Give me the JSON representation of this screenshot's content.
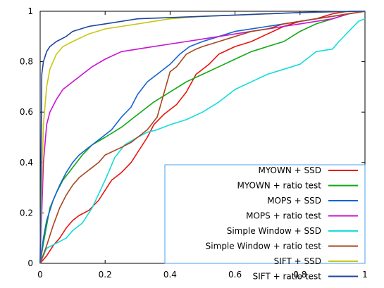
{
  "chart_data": {
    "type": "line",
    "title": "",
    "xlabel": "",
    "ylabel": "",
    "xlim": [
      0,
      1
    ],
    "ylim": [
      0,
      1
    ],
    "xticks": [
      "0",
      "0.2",
      "0.4",
      "0.6",
      "0.8",
      "1"
    ],
    "yticks": [
      "0",
      "0.2",
      "0.4",
      "0.6",
      "0.8",
      "1"
    ],
    "grid": false,
    "legend_position": "bottom-right",
    "series": [
      {
        "name": "MYOWN + SSD",
        "color": "#e8140e",
        "x": [
          0,
          0.02,
          0.04,
          0.06,
          0.08,
          0.1,
          0.12,
          0.15,
          0.18,
          0.2,
          0.22,
          0.25,
          0.28,
          0.3,
          0.33,
          0.35,
          0.38,
          0.4,
          0.42,
          0.45,
          0.48,
          0.52,
          0.55,
          0.6,
          0.65,
          0.7,
          0.75,
          0.8,
          0.85,
          0.9,
          0.95,
          1
        ],
        "y": [
          0,
          0.03,
          0.07,
          0.1,
          0.14,
          0.17,
          0.19,
          0.21,
          0.25,
          0.29,
          0.33,
          0.36,
          0.4,
          0.44,
          0.5,
          0.55,
          0.59,
          0.61,
          0.63,
          0.68,
          0.75,
          0.79,
          0.83,
          0.86,
          0.88,
          0.91,
          0.94,
          0.96,
          0.97,
          0.99,
          1,
          1
        ]
      },
      {
        "name": "MYOWN + ratio test",
        "color": "#12a812",
        "x": [
          0,
          0.01,
          0.02,
          0.03,
          0.05,
          0.07,
          0.1,
          0.13,
          0.16,
          0.2,
          0.25,
          0.3,
          0.35,
          0.4,
          0.45,
          0.5,
          0.55,
          0.6,
          0.65,
          0.7,
          0.75,
          0.8,
          0.85,
          0.9,
          0.95,
          1
        ],
        "y": [
          0,
          0.08,
          0.15,
          0.22,
          0.28,
          0.33,
          0.38,
          0.43,
          0.47,
          0.5,
          0.54,
          0.59,
          0.64,
          0.68,
          0.72,
          0.75,
          0.78,
          0.81,
          0.84,
          0.86,
          0.88,
          0.92,
          0.95,
          0.97,
          0.99,
          1
        ]
      },
      {
        "name": "MOPS + SSD",
        "color": "#1464d2",
        "x": [
          0,
          0.01,
          0.02,
          0.04,
          0.06,
          0.08,
          0.1,
          0.12,
          0.15,
          0.18,
          0.22,
          0.25,
          0.28,
          0.3,
          0.33,
          0.36,
          0.4,
          0.43,
          0.46,
          0.5,
          0.55,
          0.6,
          0.65,
          0.7,
          0.75,
          0.8,
          0.85,
          0.9,
          0.95,
          1
        ],
        "y": [
          0,
          0.1,
          0.17,
          0.25,
          0.31,
          0.36,
          0.4,
          0.43,
          0.46,
          0.49,
          0.53,
          0.58,
          0.62,
          0.67,
          0.72,
          0.75,
          0.79,
          0.83,
          0.86,
          0.88,
          0.9,
          0.92,
          0.93,
          0.94,
          0.95,
          0.96,
          0.97,
          0.98,
          0.99,
          1
        ]
      },
      {
        "name": "MOPS + ratio test",
        "color": "#c814d2",
        "x": [
          0,
          0.005,
          0.01,
          0.02,
          0.03,
          0.05,
          0.07,
          0.1,
          0.13,
          0.16,
          0.2,
          0.25,
          0.3,
          0.35,
          0.4,
          0.45,
          0.5,
          0.55,
          0.6,
          0.65,
          0.7,
          0.75,
          0.8,
          0.85,
          0.9,
          0.95,
          1
        ],
        "y": [
          0,
          0.2,
          0.4,
          0.55,
          0.6,
          0.65,
          0.69,
          0.72,
          0.75,
          0.78,
          0.81,
          0.84,
          0.85,
          0.86,
          0.87,
          0.88,
          0.89,
          0.9,
          0.91,
          0.92,
          0.93,
          0.94,
          0.95,
          0.96,
          0.97,
          0.99,
          1
        ]
      },
      {
        "name": "Simple Window + SSD",
        "color": "#14dcdc",
        "x": [
          0,
          0.02,
          0.05,
          0.08,
          0.1,
          0.13,
          0.16,
          0.2,
          0.23,
          0.26,
          0.3,
          0.33,
          0.36,
          0.4,
          0.45,
          0.5,
          0.55,
          0.6,
          0.65,
          0.7,
          0.75,
          0.8,
          0.85,
          0.9,
          0.92,
          0.95,
          0.98,
          1
        ],
        "y": [
          0,
          0.06,
          0.08,
          0.1,
          0.13,
          0.16,
          0.22,
          0.33,
          0.42,
          0.47,
          0.5,
          0.52,
          0.53,
          0.55,
          0.57,
          0.6,
          0.64,
          0.69,
          0.72,
          0.75,
          0.77,
          0.79,
          0.84,
          0.85,
          0.88,
          0.92,
          0.96,
          0.97
        ]
      },
      {
        "name": "Simple Window + ratio test",
        "color": "#a8461e",
        "x": [
          0,
          0.02,
          0.04,
          0.06,
          0.08,
          0.1,
          0.12,
          0.15,
          0.18,
          0.2,
          0.25,
          0.28,
          0.3,
          0.33,
          0.36,
          0.38,
          0.4,
          0.42,
          0.45,
          0.48,
          0.5,
          0.55,
          0.6,
          0.65,
          0.7,
          0.75,
          0.8,
          0.85,
          0.9,
          0.95,
          1
        ],
        "y": [
          0,
          0.07,
          0.15,
          0.22,
          0.27,
          0.31,
          0.34,
          0.37,
          0.4,
          0.43,
          0.46,
          0.48,
          0.5,
          0.53,
          0.58,
          0.67,
          0.76,
          0.78,
          0.83,
          0.85,
          0.86,
          0.88,
          0.9,
          0.92,
          0.93,
          0.95,
          0.96,
          0.97,
          0.98,
          0.99,
          1
        ]
      },
      {
        "name": "SIFT + SSD",
        "color": "#c8c814",
        "x": [
          0,
          0.005,
          0.01,
          0.02,
          0.03,
          0.05,
          0.07,
          0.1,
          0.15,
          0.2,
          0.25,
          0.3,
          0.35,
          0.4,
          0.5,
          0.6,
          0.7,
          0.8,
          0.9,
          1
        ],
        "y": [
          0,
          0.3,
          0.55,
          0.7,
          0.77,
          0.83,
          0.86,
          0.88,
          0.91,
          0.93,
          0.94,
          0.95,
          0.96,
          0.97,
          0.98,
          0.985,
          0.99,
          0.995,
          0.998,
          1
        ]
      },
      {
        "name": "SIFT + ratio test",
        "color": "#1e46a0",
        "x": [
          0,
          0.005,
          0.01,
          0.02,
          0.03,
          0.05,
          0.08,
          0.1,
          0.15,
          0.2,
          0.25,
          0.3,
          0.4,
          0.5,
          0.6,
          0.7,
          0.8,
          0.9,
          1
        ],
        "y": [
          0,
          0.75,
          0.8,
          0.84,
          0.86,
          0.88,
          0.9,
          0.92,
          0.94,
          0.95,
          0.96,
          0.97,
          0.975,
          0.98,
          0.985,
          0.99,
          0.995,
          0.998,
          1
        ]
      }
    ]
  }
}
